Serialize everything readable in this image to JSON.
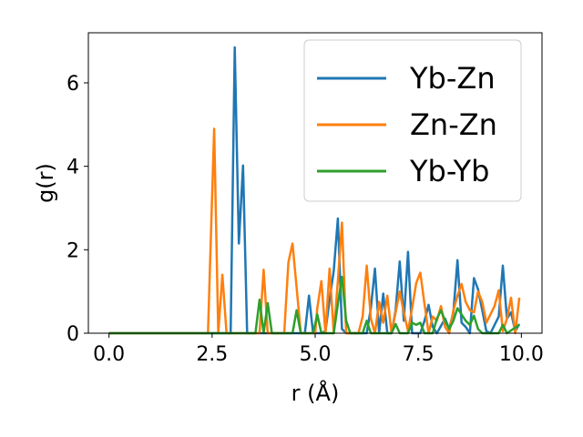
{
  "chart_data": {
    "type": "line",
    "title": "",
    "xlabel": "r (Å)",
    "ylabel": "g(r)",
    "xlim": [
      -0.5,
      10.5
    ],
    "ylim": [
      0,
      7.2
    ],
    "xticks": [
      "0.0",
      "2.5",
      "5.0",
      "7.5",
      "10.0"
    ],
    "yticks": [
      "0",
      "2",
      "4",
      "6"
    ],
    "legend_position": "top-right",
    "grid": false,
    "series": [
      {
        "name": "Yb-Zn",
        "color": "#1f77b4",
        "points": [
          [
            0,
            0
          ],
          [
            2.85,
            0
          ],
          [
            2.95,
            0
          ],
          [
            3.05,
            6.85
          ],
          [
            3.15,
            2.15
          ],
          [
            3.25,
            4.02
          ],
          [
            3.35,
            0
          ],
          [
            4.75,
            0
          ],
          [
            4.85,
            0.9
          ],
          [
            4.95,
            0
          ],
          [
            5.15,
            0
          ],
          [
            5.25,
            0.05
          ],
          [
            5.35,
            0.8
          ],
          [
            5.45,
            1.5
          ],
          [
            5.55,
            2.75
          ],
          [
            5.65,
            0.1
          ],
          [
            5.75,
            0
          ],
          [
            6.25,
            0
          ],
          [
            6.35,
            0.6
          ],
          [
            6.45,
            1.55
          ],
          [
            6.55,
            0
          ],
          [
            6.65,
            0.95
          ],
          [
            6.75,
            0
          ],
          [
            6.85,
            0
          ],
          [
            6.95,
            0.55
          ],
          [
            7.05,
            1.72
          ],
          [
            7.15,
            0.3
          ],
          [
            7.25,
            1.95
          ],
          [
            7.35,
            0
          ],
          [
            7.55,
            0
          ],
          [
            7.65,
            0.3
          ],
          [
            7.75,
            0.68
          ],
          [
            7.85,
            0.15
          ],
          [
            7.95,
            0
          ],
          [
            8.15,
            0.35
          ],
          [
            8.25,
            0.1
          ],
          [
            8.35,
            0.5
          ],
          [
            8.45,
            1.75
          ],
          [
            8.55,
            0.25
          ],
          [
            8.65,
            0.15
          ],
          [
            8.75,
            0
          ],
          [
            8.85,
            1.32
          ],
          [
            8.95,
            1.05
          ],
          [
            9.05,
            0.55
          ],
          [
            9.15,
            0.05
          ],
          [
            9.25,
            0
          ],
          [
            9.45,
            0.4
          ],
          [
            9.55,
            1.62
          ],
          [
            9.65,
            0.35
          ],
          [
            9.75,
            0.5
          ],
          [
            9.85,
            0.05
          ],
          [
            9.95,
            0.22
          ]
        ]
      },
      {
        "name": "Zn-Zn",
        "color": "#ff7f0e",
        "points": [
          [
            0,
            0
          ],
          [
            2.4,
            0
          ],
          [
            2.55,
            4.9
          ],
          [
            2.65,
            0
          ],
          [
            2.75,
            1.4
          ],
          [
            2.85,
            0
          ],
          [
            3.65,
            0
          ],
          [
            3.75,
            1.52
          ],
          [
            3.85,
            0
          ],
          [
            4.25,
            0
          ],
          [
            4.35,
            1.7
          ],
          [
            4.45,
            2.15
          ],
          [
            4.55,
            1.1
          ],
          [
            4.65,
            0
          ],
          [
            5.0,
            0
          ],
          [
            5.05,
            0.6
          ],
          [
            5.15,
            1.25
          ],
          [
            5.25,
            0
          ],
          [
            5.35,
            1.55
          ],
          [
            5.45,
            0
          ],
          [
            5.55,
            1.25
          ],
          [
            5.65,
            2.65
          ],
          [
            5.75,
            0
          ],
          [
            6.05,
            0
          ],
          [
            6.15,
            0.4
          ],
          [
            6.25,
            1.62
          ],
          [
            6.35,
            0.35
          ],
          [
            6.45,
            0
          ],
          [
            6.55,
            0.75
          ],
          [
            6.65,
            0.25
          ],
          [
            6.75,
            0.9
          ],
          [
            6.85,
            0
          ],
          [
            7.05,
            1.0
          ],
          [
            7.15,
            0.5
          ],
          [
            7.25,
            0.05
          ],
          [
            7.35,
            0.6
          ],
          [
            7.45,
            1.2
          ],
          [
            7.55,
            1.45
          ],
          [
            7.65,
            0.7
          ],
          [
            7.75,
            0
          ],
          [
            7.85,
            0.4
          ],
          [
            7.95,
            0.3
          ],
          [
            8.05,
            0.65
          ],
          [
            8.15,
            0.15
          ],
          [
            8.25,
            0
          ],
          [
            8.35,
            0.55
          ],
          [
            8.45,
            0.9
          ],
          [
            8.55,
            1.18
          ],
          [
            8.65,
            0.75
          ],
          [
            8.75,
            0.55
          ],
          [
            8.85,
            0.5
          ],
          [
            8.95,
            1.0
          ],
          [
            9.05,
            0.75
          ],
          [
            9.15,
            0.25
          ],
          [
            9.25,
            0.45
          ],
          [
            9.35,
            0.65
          ],
          [
            9.45,
            1.03
          ],
          [
            9.55,
            0.05
          ],
          [
            9.65,
            0.35
          ],
          [
            9.75,
            0.85
          ],
          [
            9.85,
            0
          ],
          [
            9.95,
            0.85
          ]
        ]
      },
      {
        "name": "Yb-Yb",
        "color": "#2ca02c",
        "points": [
          [
            0,
            0
          ],
          [
            3.55,
            0
          ],
          [
            3.65,
            0.8
          ],
          [
            3.75,
            0
          ],
          [
            3.85,
            0.72
          ],
          [
            3.95,
            0
          ],
          [
            4.45,
            0
          ],
          [
            4.55,
            0.55
          ],
          [
            4.65,
            0
          ],
          [
            4.95,
            0
          ],
          [
            5.05,
            0.45
          ],
          [
            5.15,
            0
          ],
          [
            5.45,
            0
          ],
          [
            5.55,
            0.7
          ],
          [
            5.65,
            1.35
          ],
          [
            5.75,
            0.3
          ],
          [
            5.85,
            0
          ],
          [
            6.15,
            0
          ],
          [
            6.25,
            0.3
          ],
          [
            6.35,
            0
          ],
          [
            6.85,
            0
          ],
          [
            6.95,
            0.22
          ],
          [
            7.05,
            0
          ],
          [
            7.25,
            0
          ],
          [
            7.35,
            0.25
          ],
          [
            7.45,
            0.2
          ],
          [
            7.55,
            0.25
          ],
          [
            7.65,
            0
          ],
          [
            7.85,
            0
          ],
          [
            7.95,
            0.35
          ],
          [
            8.05,
            0.55
          ],
          [
            8.15,
            0.3
          ],
          [
            8.25,
            0.1
          ],
          [
            8.35,
            0.3
          ],
          [
            8.45,
            0.6
          ],
          [
            8.55,
            0.45
          ],
          [
            8.65,
            0.3
          ],
          [
            8.75,
            0.2
          ],
          [
            8.85,
            0.42
          ],
          [
            8.95,
            0.1
          ],
          [
            9.05,
            0
          ],
          [
            9.45,
            0
          ],
          [
            9.55,
            0.2
          ],
          [
            9.65,
            0
          ],
          [
            9.95,
            0.2
          ]
        ]
      }
    ]
  }
}
